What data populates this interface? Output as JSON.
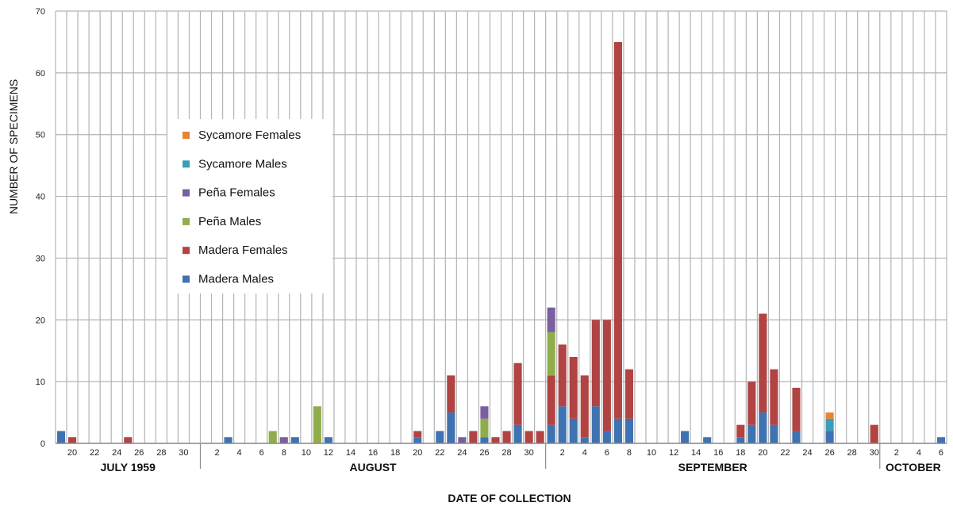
{
  "chart_data": {
    "type": "bar",
    "stacked": true,
    "xlabel": "DATE OF COLLECTION",
    "ylabel": "NUMBER OF SPECIMENS",
    "ylim": [
      0,
      70
    ],
    "yticks": [
      "0",
      "10",
      "20",
      "30",
      "40",
      "50",
      "60",
      "70"
    ],
    "grid": true,
    "legend_position": "upper-left",
    "x": [
      "1959-07-19",
      "1959-07-20",
      "1959-07-21",
      "1959-07-22",
      "1959-07-23",
      "1959-07-24",
      "1959-07-25",
      "1959-07-26",
      "1959-07-27",
      "1959-07-28",
      "1959-07-29",
      "1959-07-30",
      "1959-07-31",
      "1959-08-01",
      "1959-08-02",
      "1959-08-03",
      "1959-08-04",
      "1959-08-05",
      "1959-08-06",
      "1959-08-07",
      "1959-08-08",
      "1959-08-09",
      "1959-08-10",
      "1959-08-11",
      "1959-08-12",
      "1959-08-13",
      "1959-08-14",
      "1959-08-15",
      "1959-08-16",
      "1959-08-17",
      "1959-08-18",
      "1959-08-19",
      "1959-08-20",
      "1959-08-21",
      "1959-08-22",
      "1959-08-23",
      "1959-08-24",
      "1959-08-25",
      "1959-08-26",
      "1959-08-27",
      "1959-08-28",
      "1959-08-29",
      "1959-08-30",
      "1959-08-31",
      "1959-09-01",
      "1959-09-02",
      "1959-09-03",
      "1959-09-04",
      "1959-09-05",
      "1959-09-06",
      "1959-09-07",
      "1959-09-08",
      "1959-09-09",
      "1959-09-10",
      "1959-09-11",
      "1959-09-12",
      "1959-09-13",
      "1959-09-14",
      "1959-09-15",
      "1959-09-16",
      "1959-09-17",
      "1959-09-18",
      "1959-09-19",
      "1959-09-20",
      "1959-09-21",
      "1959-09-22",
      "1959-09-23",
      "1959-09-24",
      "1959-09-25",
      "1959-09-26",
      "1959-09-27",
      "1959-09-28",
      "1959-09-29",
      "1959-09-30",
      "1959-10-01",
      "1959-10-02",
      "1959-10-03",
      "1959-10-04",
      "1959-10-05",
      "1959-10-06"
    ],
    "tick_labels": [
      "",
      "20",
      "",
      "22",
      "",
      "24",
      "",
      "26",
      "",
      "28",
      "",
      "30",
      "",
      "",
      "2",
      "",
      "4",
      "",
      "6",
      "",
      "8",
      "",
      "10",
      "",
      "12",
      "",
      "14",
      "",
      "16",
      "",
      "18",
      "",
      "20",
      "",
      "22",
      "",
      "24",
      "",
      "26",
      "",
      "28",
      "",
      "30",
      "",
      "",
      "2",
      "",
      "4",
      "",
      "6",
      "",
      "8",
      "",
      "10",
      "",
      "12",
      "",
      "14",
      "",
      "16",
      "",
      "18",
      "",
      "20",
      "",
      "22",
      "",
      "24",
      "",
      "26",
      "",
      "28",
      "",
      "30",
      "",
      "2",
      "",
      "4",
      "",
      "6"
    ],
    "months": [
      {
        "label": "JULY 1959",
        "start": 0,
        "end": 13
      },
      {
        "label": "AUGUST",
        "start": 13,
        "end": 44
      },
      {
        "label": "SEPTEMBER",
        "start": 44,
        "end": 74
      },
      {
        "label": "OCTOBER",
        "start": 74,
        "end": 80
      }
    ],
    "series": [
      {
        "name": "Madera Males",
        "color": "#3f72b0",
        "values": [
          2,
          0,
          0,
          0,
          0,
          0,
          0,
          0,
          0,
          0,
          0,
          0,
          0,
          0,
          0,
          1,
          0,
          0,
          0,
          0,
          0,
          1,
          0,
          0,
          1,
          0,
          0,
          0,
          0,
          0,
          0,
          0,
          1,
          0,
          2,
          5,
          0,
          0,
          1,
          0,
          0,
          3,
          0,
          0,
          3,
          6,
          4,
          1,
          6,
          2,
          4,
          4,
          0,
          0,
          0,
          0,
          2,
          0,
          1,
          0,
          0,
          1,
          3,
          5,
          3,
          0,
          2,
          0,
          0,
          2,
          0,
          0,
          0,
          0,
          0,
          0,
          0,
          0,
          0,
          1
        ]
      },
      {
        "name": "Madera Females",
        "color": "#b14343",
        "values": [
          0,
          1,
          0,
          0,
          0,
          0,
          1,
          0,
          0,
          0,
          0,
          0,
          0,
          0,
          0,
          0,
          0,
          0,
          0,
          0,
          0,
          0,
          0,
          0,
          0,
          0,
          0,
          0,
          0,
          0,
          0,
          0,
          1,
          0,
          0,
          6,
          0,
          2,
          0,
          1,
          2,
          10,
          2,
          2,
          8,
          10,
          10,
          10,
          14,
          18,
          61,
          8,
          0,
          0,
          0,
          0,
          0,
          0,
          0,
          0,
          0,
          2,
          7,
          16,
          9,
          0,
          7,
          0,
          0,
          0,
          0,
          0,
          0,
          3,
          0,
          0,
          0,
          0,
          0,
          0
        ]
      },
      {
        "name": "Peña Males",
        "color": "#8fae4b",
        "values": [
          0,
          0,
          0,
          0,
          0,
          0,
          0,
          0,
          0,
          0,
          0,
          0,
          0,
          0,
          0,
          0,
          0,
          0,
          0,
          2,
          0,
          0,
          0,
          6,
          0,
          0,
          0,
          0,
          0,
          0,
          0,
          0,
          0,
          0,
          0,
          0,
          0,
          0,
          3,
          0,
          0,
          0,
          0,
          0,
          7,
          0,
          0,
          0,
          0,
          0,
          0,
          0,
          0,
          0,
          0,
          0,
          0,
          0,
          0,
          0,
          0,
          0,
          0,
          0,
          0,
          0,
          0,
          0,
          0,
          0,
          0,
          0,
          0,
          0,
          0,
          0,
          0,
          0,
          0,
          0
        ]
      },
      {
        "name": "Peña Females",
        "color": "#7a5fa0",
        "values": [
          0,
          0,
          0,
          0,
          0,
          0,
          0,
          0,
          0,
          0,
          0,
          0,
          0,
          0,
          0,
          0,
          0,
          0,
          0,
          0,
          1,
          0,
          0,
          0,
          0,
          0,
          0,
          0,
          0,
          0,
          0,
          0,
          0,
          0,
          0,
          0,
          1,
          0,
          2,
          0,
          0,
          0,
          0,
          0,
          4,
          0,
          0,
          0,
          0,
          0,
          0,
          0,
          0,
          0,
          0,
          0,
          0,
          0,
          0,
          0,
          0,
          0,
          0,
          0,
          0,
          0,
          0,
          0,
          0,
          0,
          0,
          0,
          0,
          0,
          0,
          0,
          0,
          0,
          0,
          0
        ]
      },
      {
        "name": "Sycamore Males",
        "color": "#3b9fb8",
        "values": [
          0,
          0,
          0,
          0,
          0,
          0,
          0,
          0,
          0,
          0,
          0,
          0,
          0,
          0,
          0,
          0,
          0,
          0,
          0,
          0,
          0,
          0,
          0,
          0,
          0,
          0,
          0,
          0,
          0,
          0,
          0,
          0,
          0,
          0,
          0,
          0,
          0,
          0,
          0,
          0,
          0,
          0,
          0,
          0,
          0,
          0,
          0,
          0,
          0,
          0,
          0,
          0,
          0,
          0,
          0,
          0,
          0,
          0,
          0,
          0,
          0,
          0,
          0,
          0,
          0,
          0,
          0,
          0,
          0,
          2,
          0,
          0,
          0,
          0,
          0,
          0,
          0,
          0,
          0,
          0
        ]
      },
      {
        "name": "Sycamore Females",
        "color": "#e8862f",
        "values": [
          0,
          0,
          0,
          0,
          0,
          0,
          0,
          0,
          0,
          0,
          0,
          0,
          0,
          0,
          0,
          0,
          0,
          0,
          0,
          0,
          0,
          0,
          0,
          0,
          0,
          0,
          0,
          0,
          0,
          0,
          0,
          0,
          0,
          0,
          0,
          0,
          0,
          0,
          0,
          0,
          0,
          0,
          0,
          0,
          0,
          0,
          0,
          0,
          0,
          0,
          0,
          0,
          0,
          0,
          0,
          0,
          0,
          0,
          0,
          0,
          0,
          0,
          0,
          0,
          0,
          0,
          0,
          0,
          0,
          1,
          0,
          0,
          0,
          0,
          0,
          0,
          0,
          0,
          0,
          0
        ]
      }
    ],
    "legend_order": [
      "Sycamore Females",
      "Sycamore Males",
      "Peña Females",
      "Peña Males",
      "Madera Females",
      "Madera Males"
    ]
  }
}
